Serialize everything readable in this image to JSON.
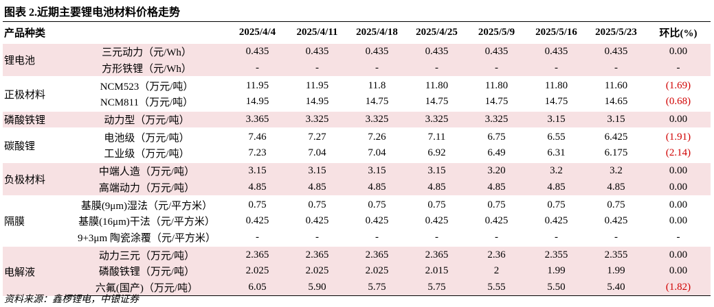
{
  "title": "图表 2.近期主要锂电池材料价格走势",
  "table": {
    "header": [
      "产品种类",
      "2025/4/4",
      "2025/4/11",
      "2025/4/18",
      "2025/4/25",
      "2025/5/9",
      "2025/5/16",
      "2025/5/23",
      "环比(%)"
    ],
    "groups": [
      {
        "name": "锂电池",
        "rows": [
          {
            "item": "三元动力（元/Wh）",
            "values": [
              "0.435",
              "0.435",
              "0.435",
              "0.435",
              "0.435",
              "0.435",
              "0.435",
              "0.00"
            ]
          },
          {
            "item": "方形铁锂（元/Wh）",
            "values": [
              "-",
              "-",
              "-",
              "-",
              "-",
              "-",
              "-",
              "-"
            ]
          }
        ]
      },
      {
        "name": "正极材料",
        "rows": [
          {
            "item": "NCM523（万元/吨）",
            "values": [
              "11.95",
              "11.95",
              "11.8",
              "11.80",
              "11.80",
              "11.80",
              "11.60",
              "(1.69)"
            ]
          },
          {
            "item": "NCM811（万元/吨）",
            "values": [
              "14.95",
              "14.95",
              "14.75",
              "14.75",
              "14.75",
              "14.75",
              "14.65",
              "(0.68)"
            ]
          }
        ]
      },
      {
        "name": "磷酸铁锂",
        "rows": [
          {
            "item": "动力型（万元/吨）",
            "values": [
              "3.365",
              "3.325",
              "3.325",
              "3.325",
              "3.325",
              "3.15",
              "3.15",
              "0.00"
            ]
          }
        ]
      },
      {
        "name": "碳酸锂",
        "rows": [
          {
            "item": "电池级（万元/吨）",
            "values": [
              "7.46",
              "7.27",
              "7.26",
              "7.11",
              "6.75",
              "6.55",
              "6.425",
              "(1.91)"
            ]
          },
          {
            "item": "工业级（万元/吨）",
            "values": [
              "7.23",
              "7.04",
              "7.04",
              "6.92",
              "6.49",
              "6.31",
              "6.175",
              "(2.14)"
            ]
          }
        ]
      },
      {
        "name": "负极材料",
        "rows": [
          {
            "item": "中端人造（万元/吨）",
            "values": [
              "3.15",
              "3.15",
              "3.15",
              "3.15",
              "3.20",
              "3.2",
              "3.2",
              "0.00"
            ]
          },
          {
            "item": "高端动力（万元/吨）",
            "values": [
              "4.85",
              "4.85",
              "4.85",
              "4.85",
              "4.85",
              "4.85",
              "4.85",
              "0.00"
            ]
          }
        ]
      },
      {
        "name": "隔膜",
        "rows": [
          {
            "item": "基膜(9μm)湿法（元/平方米）",
            "values": [
              "0.75",
              "0.75",
              "0.75",
              "0.75",
              "0.75",
              "0.75",
              "0.75",
              "0.00"
            ]
          },
          {
            "item": "基膜(16μm)干法（元/平方米）",
            "values": [
              "0.425",
              "0.425",
              "0.425",
              "0.425",
              "0.425",
              "0.425",
              "0.425",
              "0.00"
            ]
          },
          {
            "item": "9+3μm 陶瓷涂覆（元/平方米）",
            "values": [
              "-",
              "-",
              "-",
              "-",
              "-",
              "-",
              "-",
              "-"
            ]
          }
        ]
      },
      {
        "name": "电解液",
        "rows": [
          {
            "item": "动力三元（万元/吨）",
            "values": [
              "2.365",
              "2.365",
              "2.365",
              "2.365",
              "2.36",
              "2.355",
              "2.355",
              "0.00"
            ]
          },
          {
            "item": "磷酸铁锂（万元/吨）",
            "values": [
              "2.025",
              "2.025",
              "2.025",
              "2.015",
              "2",
              "1.99",
              "1.99",
              "0.00"
            ]
          },
          {
            "item": "六氟(国产)（万元/吨）",
            "values": [
              "6.05",
              "5.90",
              "5.75",
              "5.75",
              "5.55",
              "5.50",
              "5.40",
              "(1.82)"
            ]
          }
        ]
      }
    ]
  },
  "source": "资料来源：鑫椤锂电，中银证券"
}
